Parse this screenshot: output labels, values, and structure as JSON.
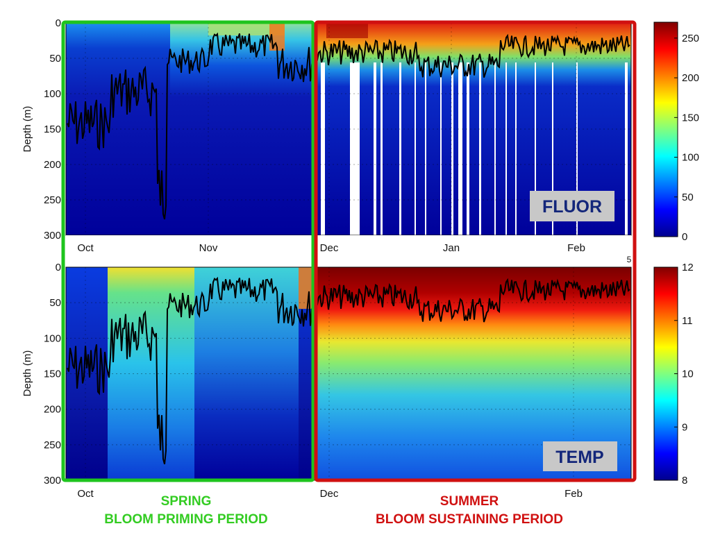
{
  "colors": {
    "spring_box": "#1ec41e",
    "summer_box": "#d01010",
    "depth_line": "#000000",
    "badge_bg": "#c8c8c8",
    "badge_text": "#13267a",
    "spring_text": "#33cc22",
    "summer_text": "#d01010"
  },
  "labels": {
    "spring_title": "SPRING",
    "spring_subtitle": "BLOOM PRIMING PERIOD",
    "summer_title": "SUMMER",
    "summer_subtitle": "BLOOM SUSTAINING PERIOD",
    "stray_tick": "5"
  },
  "chart_data": [
    {
      "type": "heatmap",
      "variable": "FLUOR",
      "badge": "FLUOR",
      "ylabel": "Depth (m)",
      "y_ticks": [
        "0",
        "50",
        "100",
        "150",
        "200",
        "250",
        "300"
      ],
      "ylim": [
        300,
        0
      ],
      "x_ticks": [
        "Oct",
        "Nov",
        "Dec",
        "Jan",
        "Feb"
      ],
      "colorbar": {
        "range": [
          0,
          270
        ],
        "ticks": [
          "0",
          "50",
          "100",
          "150",
          "200",
          "250"
        ],
        "colormap": "jet"
      },
      "grid": true
    },
    {
      "type": "heatmap",
      "variable": "TEMP",
      "badge": "TEMP",
      "ylabel": "Depth (m)",
      "y_ticks": [
        "0",
        "50",
        "100",
        "150",
        "200",
        "250",
        "300"
      ],
      "ylim": [
        300,
        0
      ],
      "x_ticks": [
        "Oct",
        "Dec",
        "Feb"
      ],
      "colorbar": {
        "range": [
          8,
          12
        ],
        "ticks": [
          "8",
          "9",
          "10",
          "11",
          "12"
        ],
        "colormap": "jet"
      },
      "grid": true
    }
  ]
}
